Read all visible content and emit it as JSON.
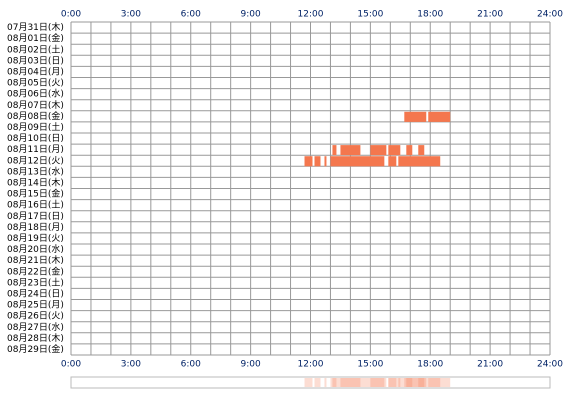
{
  "chart_data": {
    "type": "timeline",
    "categories": [
      "07月31日(木)",
      "08月01日(金)",
      "08月02日(土)",
      "08月03日(日)",
      "08月04日(月)",
      "08月05日(火)",
      "08月06日(水)",
      "08月07日(木)",
      "08月08日(金)",
      "08月09日(土)",
      "08月10日(日)",
      "08月11日(月)",
      "08月12日(火)",
      "08月13日(水)",
      "08月14日(木)",
      "08月15日(金)",
      "08月16日(土)",
      "08月17日(日)",
      "08月18日(月)",
      "08月19日(火)",
      "08月20日(水)",
      "08月21日(木)",
      "08月22日(金)",
      "08月23日(土)",
      "08月24日(日)",
      "08月25日(月)",
      "08月26日(火)",
      "08月27日(水)",
      "08月28日(木)",
      "08月29日(金)"
    ],
    "segments": [
      [],
      [],
      [],
      [],
      [],
      [],
      [],
      [],
      [
        [
          16.7,
          17.8
        ],
        [
          17.9,
          19.0
        ]
      ],
      [],
      [],
      [
        [
          13.1,
          13.3
        ],
        [
          13.5,
          14.5
        ],
        [
          15.0,
          15.8
        ],
        [
          15.9,
          16.5
        ],
        [
          16.8,
          17.1
        ],
        [
          17.4,
          17.7
        ]
      ],
      [
        [
          11.7,
          12.1
        ],
        [
          12.2,
          12.5
        ],
        [
          12.7,
          12.8
        ],
        [
          13.0,
          15.7
        ],
        [
          15.9,
          16.3
        ],
        [
          16.4,
          18.5
        ]
      ],
      [],
      [],
      [],
      [],
      [],
      [],
      [],
      [],
      [],
      [],
      [],
      [],
      [],
      [],
      [],
      [],
      []
    ],
    "color": "#f4774e",
    "xlim": [
      0,
      24
    ],
    "xticks": [
      {
        "value": 0,
        "label": "0:00"
      },
      {
        "value": 3,
        "label": "3:00"
      },
      {
        "value": 6,
        "label": "6:00"
      },
      {
        "value": 9,
        "label": "9:00"
      },
      {
        "value": 12,
        "label": "12:00"
      },
      {
        "value": 15,
        "label": "15:00"
      },
      {
        "value": 18,
        "label": "18:00"
      },
      {
        "value": 21,
        "label": "21:00"
      },
      {
        "value": 24,
        "label": "24:00"
      }
    ],
    "grid": true
  }
}
